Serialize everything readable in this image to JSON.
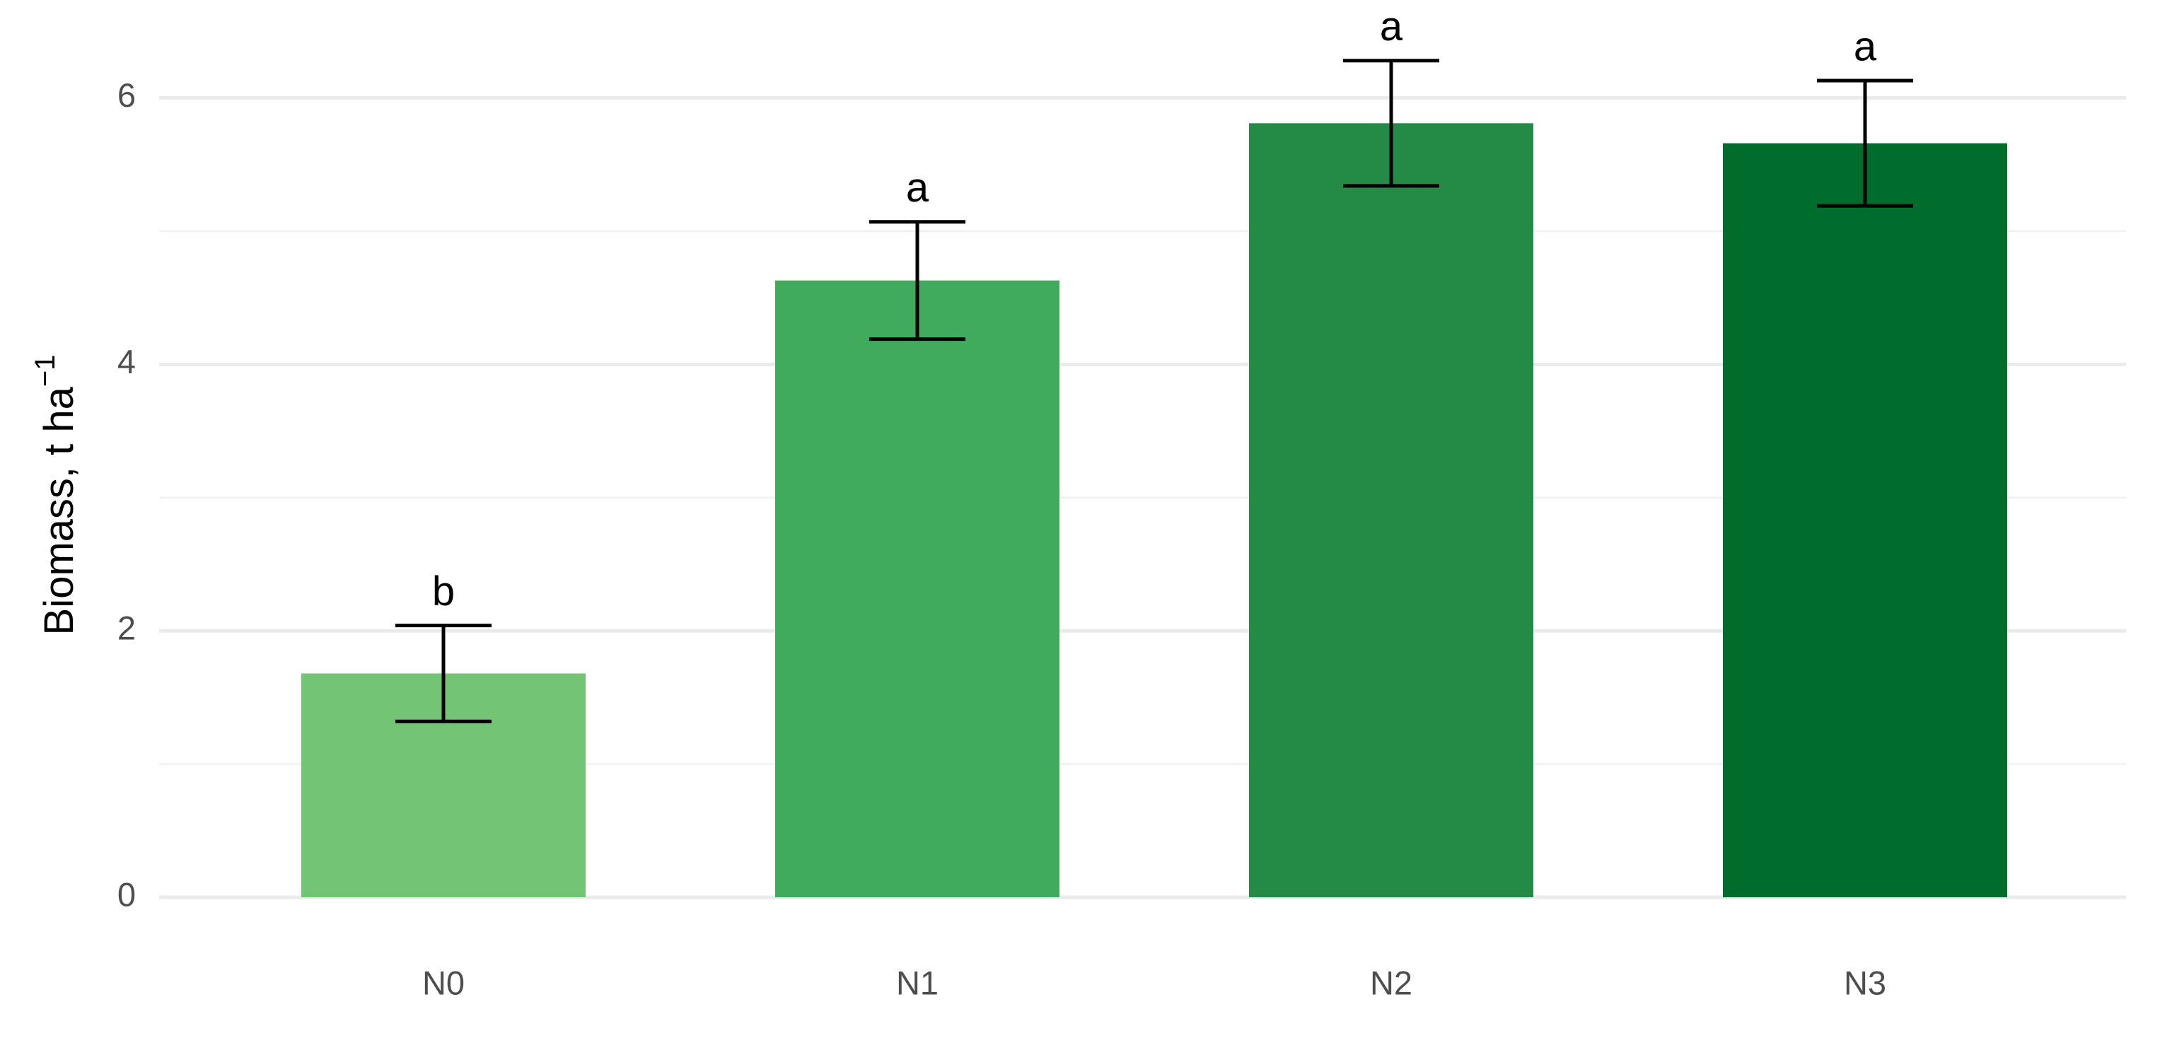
{
  "chart_data": {
    "type": "bar",
    "y_label": "Biomass, t ha",
    "y_label_superscript": "−1",
    "categories": [
      "N0",
      "N1",
      "N2",
      "N3"
    ],
    "values": [
      1.68,
      4.63,
      5.81,
      5.66
    ],
    "errors": [
      0.36,
      0.44,
      0.47,
      0.47
    ],
    "letters": [
      "b",
      "a",
      "a",
      "a"
    ],
    "colors": [
      "#74c476",
      "#41ab5d",
      "#238b45",
      "#006d2c"
    ],
    "ylim": [
      0,
      6.6
    ],
    "yticks": [
      0,
      2,
      4,
      6
    ],
    "minor_yticks": [
      1,
      3,
      5
    ],
    "grid": true
  }
}
